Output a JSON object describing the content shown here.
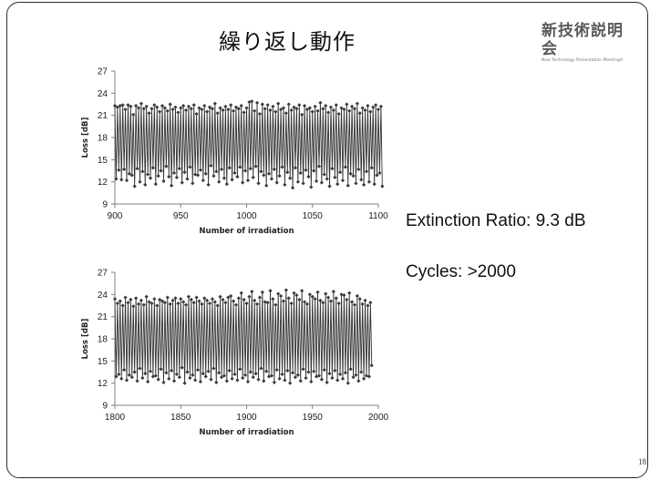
{
  "slide": {
    "title": "繰り返し動作",
    "logo_main": "新技術説明会",
    "logo_sub": "New Technology Presentation Meetings!",
    "stat_extinction": "Extinction Ratio: 9.3 dB",
    "stat_cycles": "Cycles: >2000",
    "page_number": "18"
  },
  "colors": {
    "line": "#333333",
    "marker": "#3a3a3a",
    "axis": "#7f7f7f"
  },
  "chart_data": [
    {
      "type": "line",
      "xlabel": "Number of irradiation",
      "ylabel": "Loss [dB]",
      "xlim": [
        900,
        1100
      ],
      "ylim": [
        9,
        27
      ],
      "xticks": [
        900,
        950,
        1000,
        1050,
        1100
      ],
      "yticks": [
        9,
        12,
        15,
        18,
        21,
        24,
        27
      ],
      "grid": false,
      "legend": "none",
      "series": [
        {
          "x_start": 900,
          "x_step": 1,
          "values": [
            22.3,
            12.4,
            22.1,
            13.6,
            22.3,
            12.3,
            22.4,
            13.7,
            21.8,
            12.2,
            22.4,
            13.1,
            22.2,
            12.9,
            21.1,
            11.4,
            22.3,
            13.8,
            22.0,
            12.0,
            22.6,
            13.4,
            21.9,
            11.6,
            22.2,
            13.0,
            21.3,
            12.5,
            21.9,
            13.9,
            22.4,
            11.7,
            22.1,
            12.8,
            21.5,
            13.5,
            22.3,
            12.1,
            22.0,
            14.1,
            21.6,
            12.7,
            22.5,
            11.5,
            21.8,
            13.2,
            22.1,
            12.6,
            21.4,
            13.8,
            22.0,
            11.9,
            22.3,
            13.3,
            21.7,
            12.4,
            22.2,
            14.0,
            21.9,
            11.8,
            22.4,
            13.0,
            21.2,
            12.9,
            22.0,
            13.6,
            21.8,
            12.2,
            22.3,
            13.1,
            21.5,
            11.6,
            22.1,
            14.2,
            21.9,
            12.8,
            22.6,
            13.4,
            21.3,
            12.0,
            22.0,
            13.7,
            21.7,
            12.5,
            22.2,
            11.7,
            21.8,
            13.9,
            22.4,
            12.3,
            21.6,
            13.2,
            22.1,
            12.7,
            21.9,
            14.0,
            22.3,
            11.9,
            21.4,
            13.5,
            22.0,
            12.2,
            22.8,
            13.8,
            22.9,
            12.6,
            21.6,
            14.1,
            22.7,
            11.8,
            21.2,
            13.4,
            22.5,
            12.9,
            21.9,
            11.5,
            22.4,
            13.1,
            21.7,
            12.4,
            22.2,
            13.7,
            21.5,
            11.9,
            22.6,
            12.8,
            21.8,
            14.0,
            22.0,
            11.6,
            21.3,
            13.3,
            22.5,
            12.5,
            21.7,
            11.2,
            22.1,
            13.9,
            21.9,
            12.0,
            22.4,
            13.2,
            21.1,
            11.8,
            22.3,
            13.6,
            21.8,
            12.7,
            22.0,
            11.3,
            21.5,
            13.5,
            22.2,
            12.1,
            21.6,
            14.1,
            22.7,
            11.9,
            21.9,
            13.0,
            22.3,
            12.4,
            21.4,
            11.4,
            22.1,
            13.8,
            21.7,
            12.6,
            22.4,
            11.7,
            21.2,
            13.3,
            22.0,
            12.2,
            21.8,
            14.0,
            22.5,
            11.5,
            21.6,
            13.1,
            22.2,
            12.8,
            21.9,
            11.8,
            22.6,
            13.7,
            21.3,
            12.3,
            22.0,
            11.6,
            21.7,
            13.4,
            22.3,
            12.0,
            21.5,
            13.9,
            22.1,
            11.7,
            22.4,
            12.9,
            21.8,
            13.2,
            22.2,
            11.4
          ]
        }
      ]
    },
    {
      "type": "line",
      "xlabel": "Number of irradiation",
      "ylabel": "Loss [dB]",
      "xlim": [
        1800,
        2000
      ],
      "ylim": [
        9,
        27
      ],
      "xticks": [
        1800,
        1850,
        1900,
        1950,
        2000
      ],
      "yticks": [
        9,
        12,
        15,
        18,
        21,
        24,
        27
      ],
      "grid": false,
      "legend": "none",
      "series": [
        {
          "x_start": 1800,
          "x_step": 1,
          "values": [
            23.4,
            12.9,
            22.8,
            13.2,
            23.1,
            12.6,
            22.5,
            13.8,
            23.6,
            12.4,
            22.9,
            13.1,
            23.3,
            12.8,
            22.4,
            13.5,
            23.5,
            12.3,
            22.7,
            14.0,
            23.2,
            12.7,
            22.6,
            13.3,
            23.7,
            12.2,
            23.0,
            13.6,
            22.8,
            12.9,
            23.4,
            13.0,
            22.5,
            12.5,
            23.3,
            13.9,
            23.1,
            12.1,
            22.9,
            13.4,
            23.6,
            12.6,
            22.7,
            13.7,
            23.2,
            12.3,
            23.5,
            13.2,
            22.8,
            12.8,
            23.4,
            14.1,
            23.0,
            12.0,
            22.6,
            13.5,
            23.7,
            12.7,
            23.3,
            13.1,
            22.9,
            12.4,
            23.6,
            13.8,
            23.1,
            12.2,
            22.7,
            13.3,
            23.5,
            12.9,
            23.2,
            13.6,
            22.8,
            12.5,
            23.4,
            14.0,
            23.0,
            12.1,
            22.5,
            13.4,
            23.7,
            12.8,
            23.3,
            13.0,
            22.9,
            12.3,
            23.6,
            13.7,
            23.8,
            12.6,
            23.1,
            13.2,
            22.6,
            12.4,
            23.5,
            13.9,
            24.2,
            12.7,
            23.3,
            13.1,
            22.8,
            12.2,
            23.7,
            13.5,
            24.4,
            12.8,
            23.2,
            13.3,
            22.7,
            12.5,
            23.6,
            14.0,
            24.3,
            12.3,
            23.0,
            13.6,
            22.9,
            12.9,
            24.5,
            13.0,
            23.4,
            12.1,
            22.6,
            13.8,
            24.1,
            12.6,
            23.8,
            13.2,
            23.1,
            12.4,
            24.6,
            13.7,
            23.5,
            12.0,
            22.8,
            13.4,
            24.2,
            12.8,
            23.9,
            13.1,
            23.3,
            12.3,
            24.5,
            13.9,
            23.0,
            12.7,
            22.7,
            13.5,
            24.0,
            12.2,
            23.7,
            13.6,
            23.4,
            12.9,
            24.3,
            13.0,
            23.2,
            12.5,
            22.9,
            13.8,
            24.1,
            12.1,
            23.6,
            13.3,
            23.1,
            12.7,
            24.4,
            13.7,
            23.5,
            12.4,
            22.8,
            13.2,
            24.0,
            12.6,
            23.9,
            13.4,
            23.3,
            12.0,
            24.2,
            13.9,
            23.0,
            12.8,
            22.6,
            13.1,
            23.8,
            12.3,
            23.4,
            13.5,
            22.7,
            12.6,
            23.2,
            13.0,
            22.5,
            12.9,
            22.9,
            14.4
          ]
        }
      ]
    }
  ]
}
